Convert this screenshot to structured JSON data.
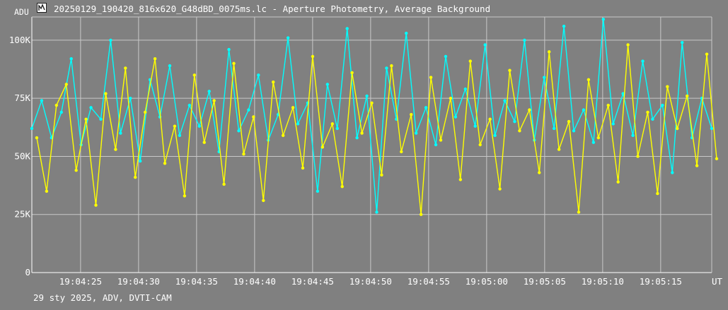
{
  "window": {
    "title": "20250129_190420_816x620_G48dBD_0075ms.lc - Aperture Photometry, Average Background",
    "footer": "29 sty 2025, ADV, DVTI-CAM",
    "icon": "lightcurve-app-icon"
  },
  "colors": {
    "background": "#808080",
    "grid": "#c8c8c8",
    "text": "#ffffff",
    "series_cyan": "#00ffff",
    "series_yellow": "#ffff00"
  },
  "chart_data": {
    "type": "line",
    "ylabel": "ADU",
    "xlabel": "UT",
    "ylim": [
      0,
      110000
    ],
    "xlim_seconds": [
      20.8,
      79.4
    ],
    "x_ticks": [
      "19:04:25",
      "19:04:30",
      "19:04:35",
      "19:04:40",
      "19:04:45",
      "19:04:50",
      "19:04:55",
      "19:05:00",
      "19:05:05",
      "19:05:10",
      "19:05:15"
    ],
    "y_ticks": [
      "0",
      "25K",
      "50K",
      "75K",
      "100K"
    ],
    "grid": true,
    "legend": "none",
    "markers": "dots",
    "frame_interval_s": 0.075,
    "series": [
      {
        "color": "#00ffff",
        "values_sample": [
          62000,
          74000,
          58000,
          69000,
          92000,
          55000,
          71000,
          66000,
          100000,
          60000,
          75000,
          48000,
          83000,
          67000,
          89000,
          59000,
          72000,
          63000,
          78000,
          52000,
          96000,
          61000,
          70000,
          85000,
          57000,
          68000,
          101000,
          64000,
          73000,
          35000,
          81000,
          62000,
          105000,
          58000,
          76000,
          26000,
          88000,
          66000,
          103000,
          60000,
          71000,
          55000,
          93000,
          67000,
          79000,
          63000,
          98000,
          59000,
          74000,
          65000,
          100000,
          57000,
          84000,
          62000,
          106000,
          61000,
          70000,
          56000,
          109000,
          64000,
          77000,
          59000,
          91000,
          66000,
          72000,
          43000,
          99000,
          58000,
          75000,
          62000
        ]
      },
      {
        "color": "#ffff00",
        "values_sample": [
          58000,
          35000,
          72000,
          81000,
          44000,
          66000,
          29000,
          77000,
          53000,
          88000,
          41000,
          69000,
          92000,
          47000,
          63000,
          33000,
          85000,
          56000,
          74000,
          38000,
          90000,
          51000,
          67000,
          31000,
          82000,
          59000,
          71000,
          45000,
          93000,
          54000,
          64000,
          37000,
          86000,
          60000,
          73000,
          42000,
          89000,
          52000,
          68000,
          25000,
          84000,
          57000,
          75000,
          40000,
          91000,
          55000,
          66000,
          36000,
          87000,
          61000,
          70000,
          43000,
          95000,
          53000,
          65000,
          26000,
          83000,
          58000,
          72000,
          39000,
          98000,
          50000,
          69000,
          34000,
          80000,
          62000,
          76000,
          46000,
          94000,
          49000
        ]
      }
    ]
  }
}
